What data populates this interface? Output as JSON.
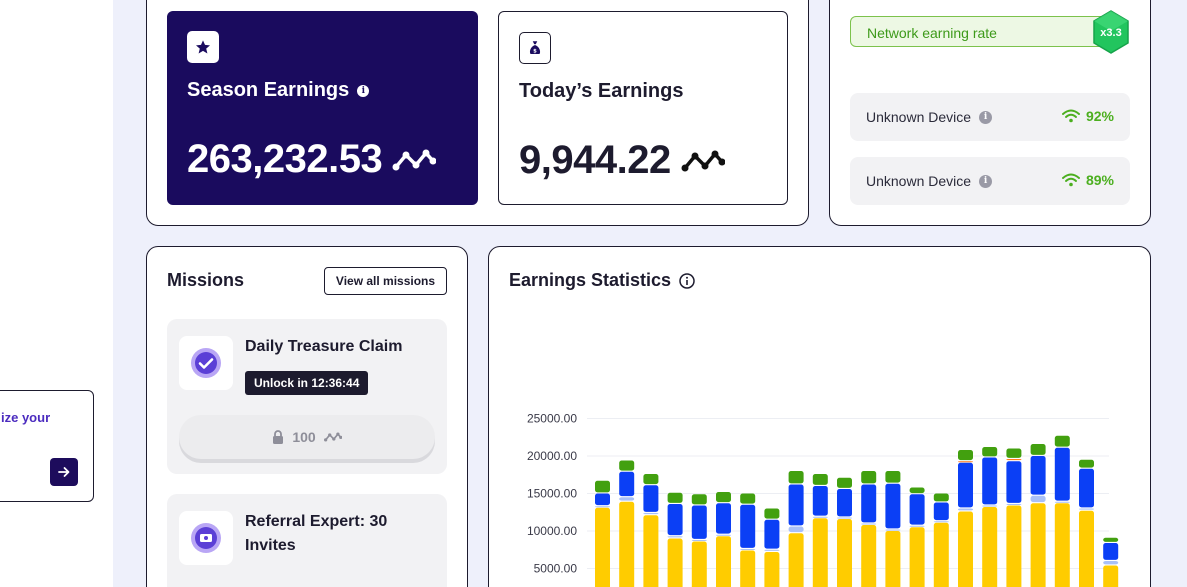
{
  "sidebar": {
    "promo_text": "ize your"
  },
  "season": {
    "label": "Season Earnings",
    "value": "263,232.53"
  },
  "today": {
    "label": "Today’s Earnings",
    "value": "9,944.22"
  },
  "network": {
    "rate_label": "Network earning rate",
    "multiplier": "x3.3"
  },
  "devices": [
    {
      "name": "Unknown Device",
      "signal": "92%"
    },
    {
      "name": "Unknown Device",
      "signal": "89%"
    }
  ],
  "missions": {
    "title": "Missions",
    "view_all": "View all missions",
    "items": [
      {
        "title": "Daily Treasure Claim",
        "unlock": "Unlock in 12:36:44",
        "reward": "100"
      },
      {
        "title": "Referral Expert: 30 Invites"
      }
    ]
  },
  "stats": {
    "title": "Earnings Statistics"
  },
  "colors": {
    "navy": "#1a0b5e",
    "yellow": "#ffcc00",
    "blue": "#0b3ff5",
    "lightblue": "#a9c0f7",
    "green": "#42a00f",
    "orange": "#ff7a1a",
    "accent_green": "#4caf1f"
  },
  "chart_data": {
    "type": "bar",
    "stacked": true,
    "y_tick_labels": [
      "25000.00",
      "20000.00",
      "15000.00",
      "10000.00",
      "5000.00"
    ],
    "ylim": [
      2000,
      27500
    ],
    "grid": true,
    "bars": [
      {
        "yellow": 13200,
        "lightblue": 200,
        "blue": 1700,
        "green": 1700
      },
      {
        "yellow": 14000,
        "lightblue": 600,
        "blue": 3400,
        "green": 1500
      },
      {
        "yellow": 12200,
        "lightblue": 300,
        "blue": 3700,
        "green": 1500
      },
      {
        "yellow": 9100,
        "lightblue": 300,
        "blue": 4300,
        "green": 1500
      },
      {
        "yellow": 8700,
        "lightblue": 200,
        "blue": 4600,
        "green": 1500
      },
      {
        "yellow": 9400,
        "lightblue": 200,
        "blue": 4200,
        "green": 1500
      },
      {
        "yellow": 7500,
        "lightblue": 200,
        "blue": 5900,
        "green": 1500
      },
      {
        "yellow": 7300,
        "lightblue": 300,
        "blue": 4000,
        "green": 1500
      },
      {
        "yellow": 9800,
        "lightblue": 900,
        "blue": 5600,
        "green": 1800
      },
      {
        "yellow": 11800,
        "lightblue": 200,
        "blue": 4100,
        "green": 1600
      },
      {
        "yellow": 11700,
        "lightblue": 200,
        "blue": 3800,
        "green": 1500
      },
      {
        "yellow": 10900,
        "lightblue": 200,
        "blue": 5200,
        "green": 1800
      },
      {
        "yellow": 10100,
        "lightblue": 200,
        "blue": 6100,
        "green": 1700
      },
      {
        "yellow": 10600,
        "lightblue": 200,
        "blue": 4200,
        "green": 900
      },
      {
        "yellow": 11200,
        "lightblue": 200,
        "blue": 2500,
        "green": 1200
      },
      {
        "yellow": 12700,
        "lightblue": 400,
        "blue": 6100,
        "green": 1500,
        "orange": 200
      },
      {
        "yellow": 13300,
        "lightblue": 200,
        "blue": 6400,
        "green": 1400
      },
      {
        "yellow": 13500,
        "lightblue": 200,
        "blue": 5700,
        "green": 1400,
        "orange": 300
      },
      {
        "yellow": 13800,
        "lightblue": 1000,
        "blue": 5300,
        "green": 1600
      },
      {
        "yellow": 13800,
        "lightblue": 200,
        "blue": 7200,
        "green": 1600
      },
      {
        "yellow": 12800,
        "lightblue": 300,
        "blue": 5300,
        "green": 1200
      },
      {
        "yellow": 5500,
        "lightblue": 600,
        "blue": 2400,
        "green": 700
      }
    ]
  }
}
